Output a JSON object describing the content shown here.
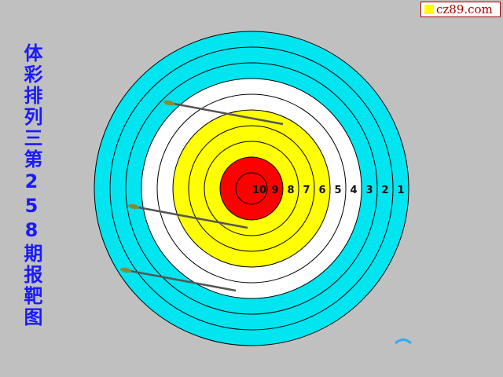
{
  "watermark": "cz89.com",
  "title": "体彩排列三第258期报靶图",
  "ring_labels": [
    "10",
    "9",
    "8",
    "7",
    "6",
    "5",
    "4",
    "3",
    "2",
    "1"
  ],
  "colors": {
    "background": "#c0c0c0",
    "outer": "#00e5f0",
    "white": "#ffffff",
    "yellow": "#ffff00",
    "center": "#ff0000",
    "title": "#1a1aff"
  },
  "arrows": 3
}
